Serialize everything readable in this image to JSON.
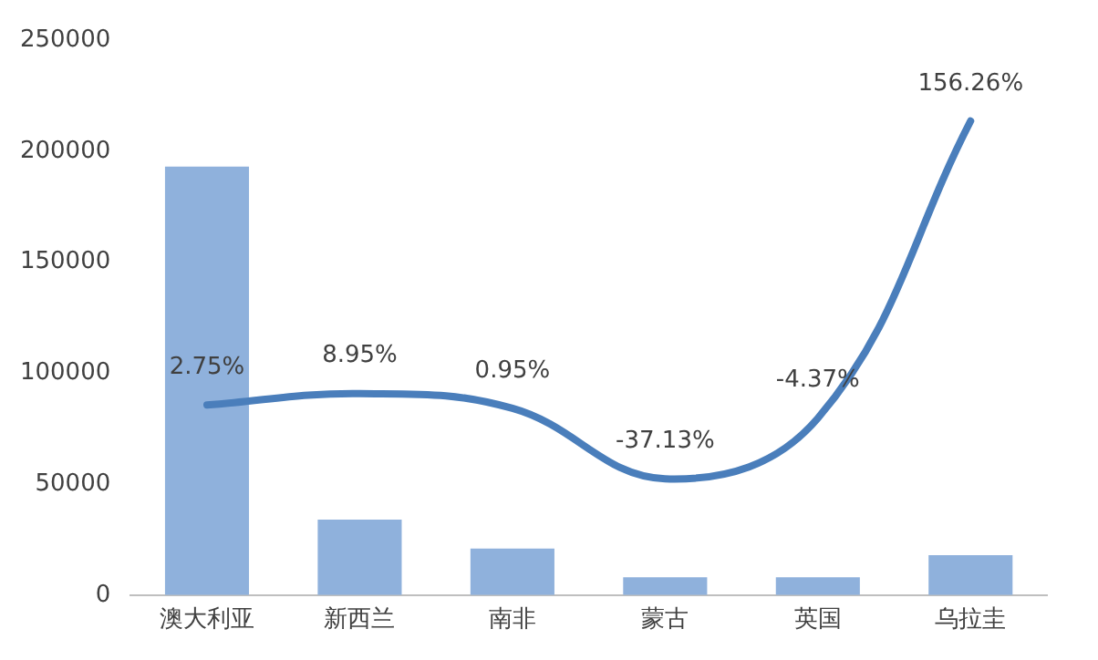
{
  "chart_data": {
    "type": "bar",
    "categories": [
      "澳大利亚",
      "新西兰",
      "南非",
      "蒙古",
      "英国",
      "乌拉圭"
    ],
    "series": [
      {
        "color": "#8fb1dc",
        "values": [
          193000,
          34000,
          21000,
          8000,
          8000,
          18000
        ]
      },
      {
        "type": "line",
        "axis": "y2",
        "color": "#4a7ebb",
        "values": [
          2.75,
          8.95,
          0.95,
          -37.13,
          -4.37,
          156.26
        ],
        "value_labels": [
          "2.75%",
          "8.95%",
          "0.95%",
          "-37.13%",
          "-4.37%",
          "156.26%"
        ]
      }
    ],
    "ylim": [
      0,
      250000
    ],
    "yticks": [
      0,
      50000,
      100000,
      150000,
      200000,
      250000
    ],
    "grid": false,
    "legend": false,
    "marker": "none"
  }
}
